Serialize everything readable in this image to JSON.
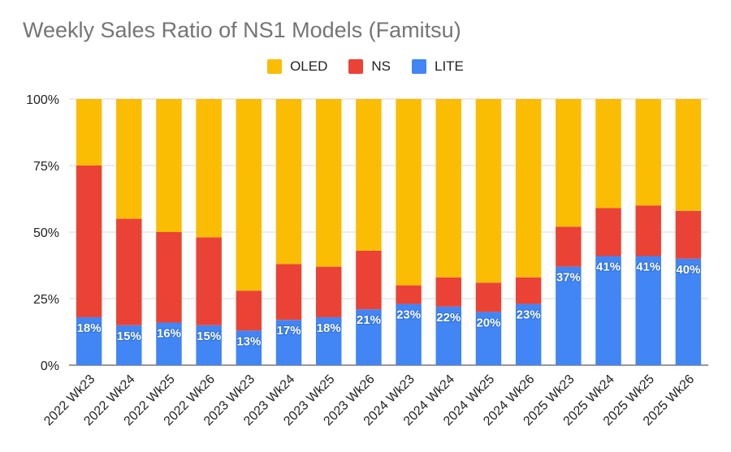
{
  "chart_data": {
    "type": "bar",
    "stacked": true,
    "percent_stacked": true,
    "title": "Weekly Sales Ratio of NS1 Models (Famitsu)",
    "legend_position": "top",
    "categories": [
      "2022 Wk23",
      "2022 Wk24",
      "2022 Wk25",
      "2022 Wk26",
      "2023 Wk23",
      "2023 Wk24",
      "2023 Wk25",
      "2023 Wk26",
      "2024 Wk23",
      "2024 Wk24",
      "2024 Wk25",
      "2024 Wk26",
      "2025 Wk23",
      "2025 Wk24",
      "2025 Wk25",
      "2025 Wk26"
    ],
    "y_ticks": [
      "0%",
      "25%",
      "50%",
      "75%",
      "100%"
    ],
    "ylim": [
      0,
      100
    ],
    "grid": true,
    "series": [
      {
        "name": "LITE",
        "color": "#4285f4",
        "values": [
          18,
          15,
          16,
          15,
          13,
          17,
          18,
          21,
          23,
          22,
          20,
          23,
          37,
          41,
          41,
          40
        ],
        "labels": [
          "18%",
          "15%",
          "16%",
          "15%",
          "13%",
          "17%",
          "18%",
          "21%",
          "23%",
          "22%",
          "20%",
          "23%",
          "37%",
          "41%",
          "41%",
          "40%"
        ]
      },
      {
        "name": "NS",
        "color": "#ea4335",
        "values": [
          57,
          40,
          34,
          33,
          15,
          21,
          19,
          22,
          7,
          11,
          11,
          10,
          15,
          18,
          19,
          18
        ]
      },
      {
        "name": "OLED",
        "color": "#fbbc04",
        "values": [
          25,
          45,
          50,
          52,
          72,
          62,
          63,
          57,
          70,
          67,
          69,
          67,
          48,
          41,
          40,
          42
        ]
      }
    ],
    "legend_order": [
      "OLED",
      "NS",
      "LITE"
    ]
  }
}
